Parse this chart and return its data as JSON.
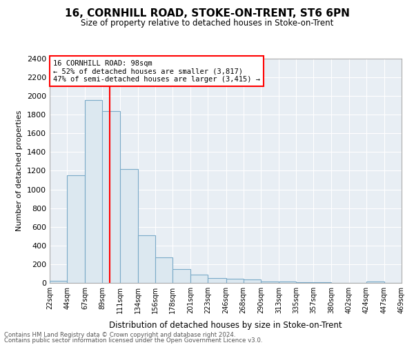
{
  "title": "16, CORNHILL ROAD, STOKE-ON-TRENT, ST6 6PN",
  "subtitle": "Size of property relative to detached houses in Stoke-on-Trent",
  "xlabel": "Distribution of detached houses by size in Stoke-on-Trent",
  "ylabel": "Number of detached properties",
  "bin_edges": [
    22,
    44,
    67,
    89,
    111,
    134,
    156,
    178,
    201,
    223,
    246,
    268,
    290,
    313,
    335,
    357,
    380,
    402,
    424,
    447,
    469
  ],
  "bar_heights": [
    25,
    1150,
    1960,
    1840,
    1220,
    510,
    270,
    150,
    85,
    55,
    45,
    35,
    15,
    12,
    8,
    5,
    3,
    2,
    15,
    2
  ],
  "bar_color": "#dce8f0",
  "bar_edgecolor": "#7aaac8",
  "red_line_x": 98,
  "ylim": [
    0,
    2400
  ],
  "yticks": [
    0,
    200,
    400,
    600,
    800,
    1000,
    1200,
    1400,
    1600,
    1800,
    2000,
    2200,
    2400
  ],
  "annotation_line1": "16 CORNHILL ROAD: 98sqm",
  "annotation_line2": "← 52% of detached houses are smaller (3,817)",
  "annotation_line3": "47% of semi-detached houses are larger (3,415) →",
  "footer_line1": "Contains HM Land Registry data © Crown copyright and database right 2024.",
  "footer_line2": "Contains public sector information licensed under the Open Government Licence v3.0.",
  "bg_color": "#e8eef4"
}
